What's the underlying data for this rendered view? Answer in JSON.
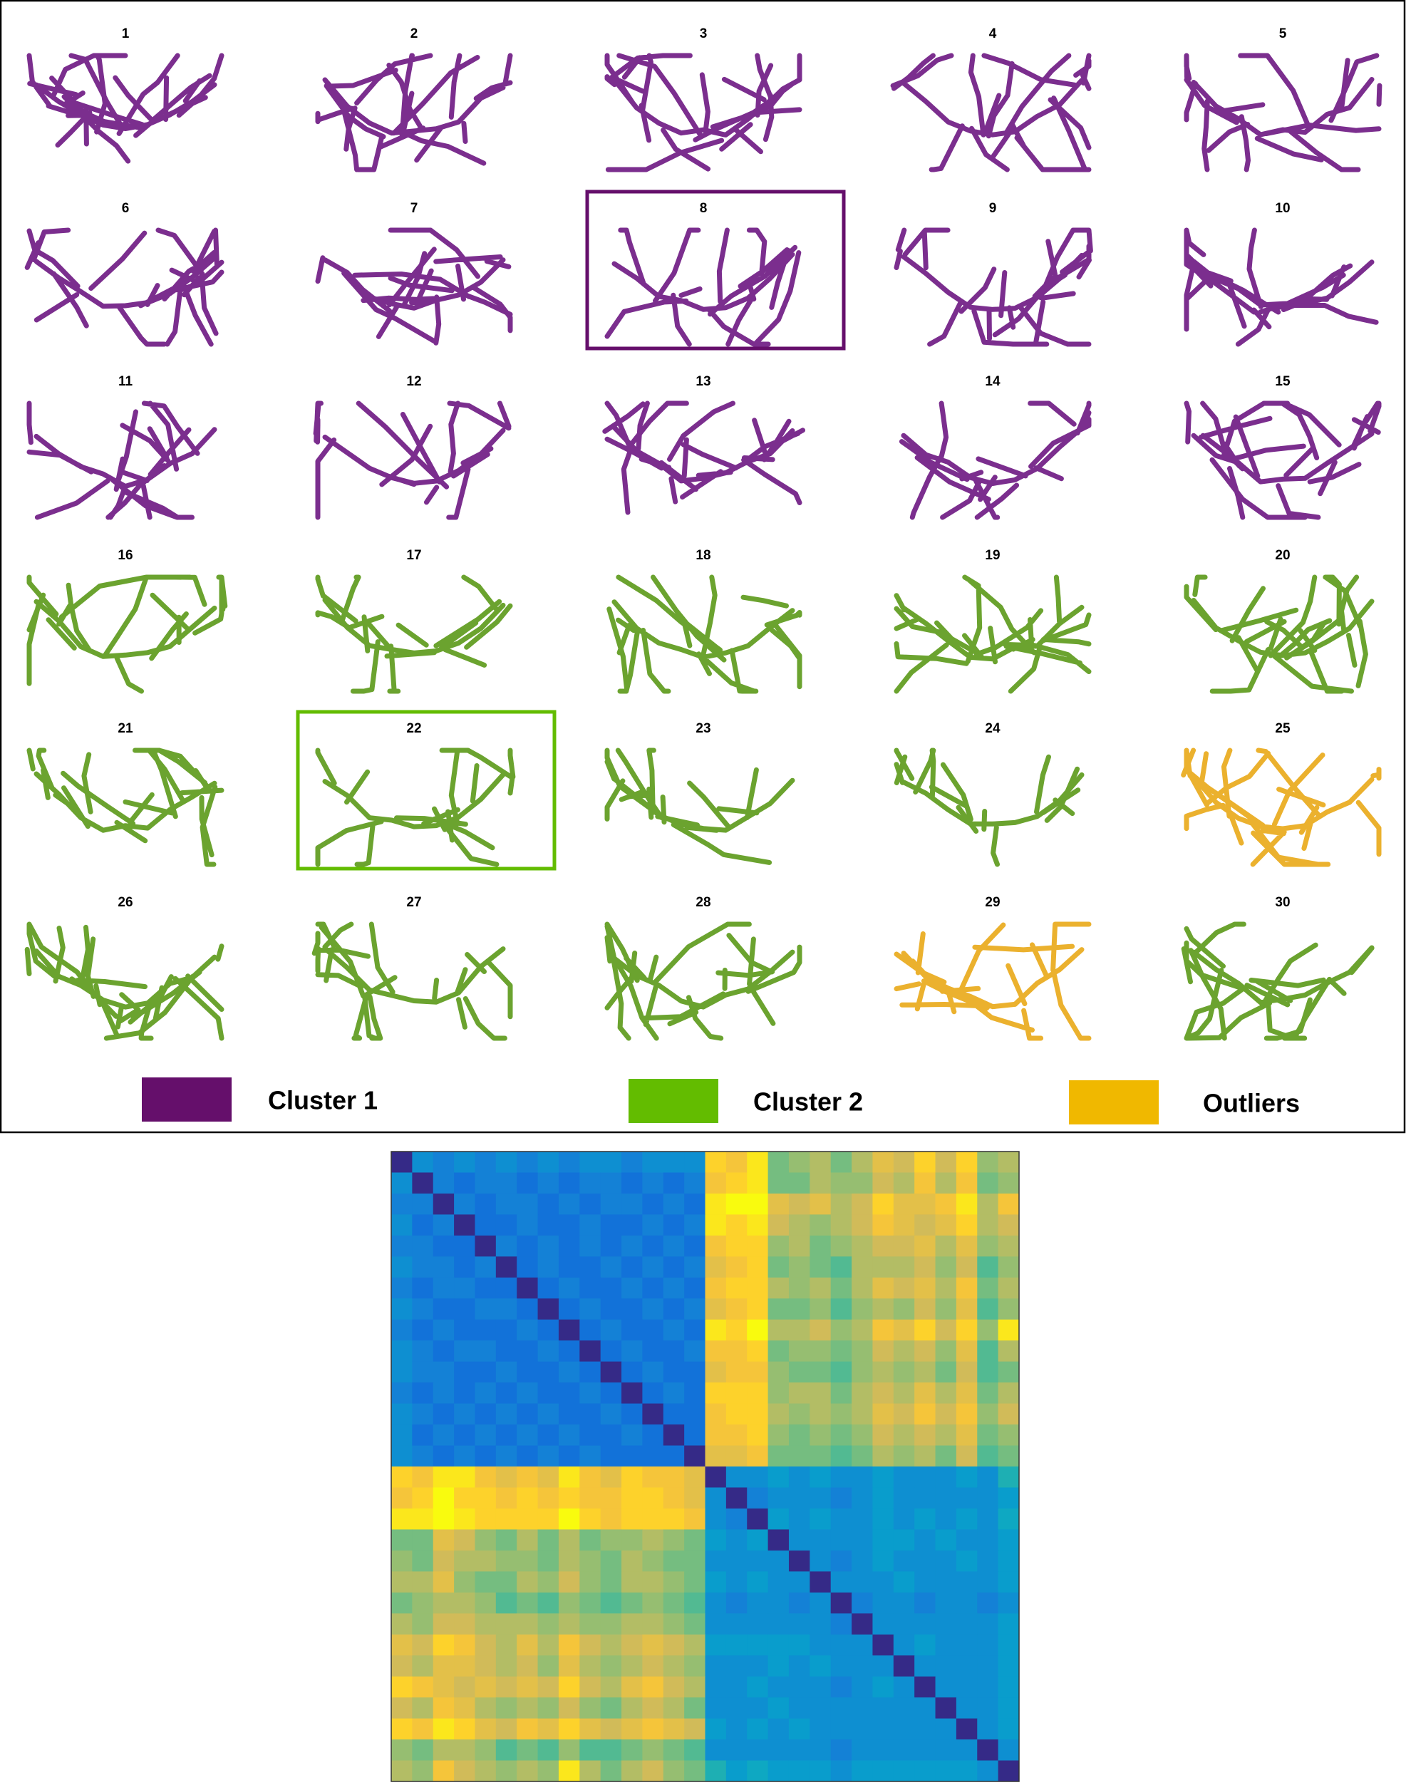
{
  "figure": {
    "panels": [
      {
        "label": "1",
        "group": 0
      },
      {
        "label": "2",
        "group": 0
      },
      {
        "label": "3",
        "group": 0
      },
      {
        "label": "4",
        "group": 0
      },
      {
        "label": "5",
        "group": 0
      },
      {
        "label": "6",
        "group": 0
      },
      {
        "label": "7",
        "group": 0
      },
      {
        "label": "8",
        "group": 0,
        "highlight": true
      },
      {
        "label": "9",
        "group": 0
      },
      {
        "label": "10",
        "group": 0
      },
      {
        "label": "11",
        "group": 0
      },
      {
        "label": "12",
        "group": 0
      },
      {
        "label": "13",
        "group": 0
      },
      {
        "label": "14",
        "group": 0
      },
      {
        "label": "15",
        "group": 0
      },
      {
        "label": "16",
        "group": 1
      },
      {
        "label": "17",
        "group": 1
      },
      {
        "label": "18",
        "group": 1
      },
      {
        "label": "19",
        "group": 1
      },
      {
        "label": "20",
        "group": 1
      },
      {
        "label": "21",
        "group": 1
      },
      {
        "label": "22",
        "group": 1,
        "highlight": true
      },
      {
        "label": "23",
        "group": 1
      },
      {
        "label": "24",
        "group": 1
      },
      {
        "label": "25",
        "group": 2
      },
      {
        "label": "26",
        "group": 1
      },
      {
        "label": "27",
        "group": 1
      },
      {
        "label": "28",
        "group": 1
      },
      {
        "label": "29",
        "group": 2
      },
      {
        "label": "30",
        "group": 1
      }
    ],
    "legend": [
      {
        "name": "Cluster 1",
        "color": "#650f6b",
        "stroke": "#7b2e8e"
      },
      {
        "name": "Cluster 2",
        "color": "#63bc00",
        "stroke": "#6ba32f"
      },
      {
        "name": "Outliers",
        "color": "#f0b800",
        "stroke": "#ebb12e"
      }
    ]
  },
  "chart_data": {
    "type": "heatmap",
    "colormap": "parula",
    "clim": [
      0,
      1
    ],
    "values": [
      [
        0,
        0.3,
        0.25,
        0.3,
        0.25,
        0.3,
        0.25,
        0.3,
        0.25,
        0.3,
        0.3,
        0.25,
        0.3,
        0.3,
        0.3,
        0.9,
        0.85,
        0.95,
        0.6,
        0.65,
        0.7,
        0.6,
        0.7,
        0.8,
        0.75,
        0.9,
        0.75,
        0.9,
        0.65,
        0.7
      ],
      [
        0.3,
        0,
        0.25,
        0.2,
        0.25,
        0.25,
        0.2,
        0.25,
        0.2,
        0.25,
        0.25,
        0.2,
        0.25,
        0.2,
        0.25,
        0.85,
        0.9,
        0.95,
        0.6,
        0.6,
        0.7,
        0.65,
        0.65,
        0.75,
        0.7,
        0.85,
        0.7,
        0.85,
        0.6,
        0.65
      ],
      [
        0.25,
        0.25,
        0,
        0.25,
        0.2,
        0.25,
        0.25,
        0.2,
        0.25,
        0.2,
        0.25,
        0.25,
        0.2,
        0.25,
        0.2,
        0.95,
        1,
        1,
        0.8,
        0.75,
        0.8,
        0.7,
        0.75,
        0.9,
        0.8,
        0.8,
        0.85,
        0.95,
        0.7,
        0.85
      ],
      [
        0.3,
        0.2,
        0.25,
        0,
        0.2,
        0.2,
        0.25,
        0.2,
        0.2,
        0.25,
        0.2,
        0.2,
        0.25,
        0.2,
        0.25,
        0.95,
        0.9,
        0.95,
        0.75,
        0.7,
        0.65,
        0.7,
        0.75,
        0.85,
        0.8,
        0.75,
        0.8,
        0.9,
        0.7,
        0.75
      ],
      [
        0.25,
        0.25,
        0.2,
        0.2,
        0,
        0.25,
        0.2,
        0.25,
        0.2,
        0.25,
        0.2,
        0.25,
        0.2,
        0.25,
        0.2,
        0.85,
        0.9,
        0.9,
        0.65,
        0.7,
        0.6,
        0.65,
        0.7,
        0.75,
        0.75,
        0.8,
        0.7,
        0.8,
        0.65,
        0.7
      ],
      [
        0.3,
        0.25,
        0.25,
        0.2,
        0.25,
        0,
        0.2,
        0.25,
        0.2,
        0.2,
        0.25,
        0.2,
        0.25,
        0.2,
        0.25,
        0.8,
        0.85,
        0.9,
        0.6,
        0.65,
        0.6,
        0.55,
        0.7,
        0.7,
        0.7,
        0.75,
        0.65,
        0.75,
        0.55,
        0.65
      ],
      [
        0.25,
        0.2,
        0.25,
        0.25,
        0.2,
        0.2,
        0,
        0.2,
        0.25,
        0.2,
        0.2,
        0.25,
        0.2,
        0.25,
        0.2,
        0.85,
        0.9,
        0.9,
        0.7,
        0.65,
        0.7,
        0.6,
        0.7,
        0.8,
        0.75,
        0.8,
        0.7,
        0.85,
        0.6,
        0.7
      ],
      [
        0.3,
        0.25,
        0.2,
        0.2,
        0.25,
        0.25,
        0.2,
        0,
        0.2,
        0.25,
        0.2,
        0.2,
        0.25,
        0.2,
        0.25,
        0.8,
        0.85,
        0.9,
        0.6,
        0.6,
        0.65,
        0.55,
        0.65,
        0.7,
        0.65,
        0.75,
        0.65,
        0.8,
        0.55,
        0.65
      ],
      [
        0.25,
        0.2,
        0.25,
        0.2,
        0.2,
        0.2,
        0.25,
        0.2,
        0,
        0.2,
        0.25,
        0.2,
        0.2,
        0.25,
        0.2,
        0.95,
        0.9,
        1,
        0.7,
        0.7,
        0.75,
        0.65,
        0.7,
        0.85,
        0.8,
        0.9,
        0.75,
        0.9,
        0.65,
        0.95
      ],
      [
        0.3,
        0.25,
        0.2,
        0.25,
        0.25,
        0.2,
        0.2,
        0.25,
        0.2,
        0,
        0.2,
        0.25,
        0.2,
        0.2,
        0.25,
        0.85,
        0.85,
        0.9,
        0.6,
        0.65,
        0.65,
        0.6,
        0.65,
        0.75,
        0.7,
        0.75,
        0.65,
        0.8,
        0.55,
        0.7
      ],
      [
        0.3,
        0.25,
        0.25,
        0.2,
        0.2,
        0.25,
        0.2,
        0.2,
        0.25,
        0.2,
        0,
        0.2,
        0.25,
        0.2,
        0.2,
        0.8,
        0.85,
        0.85,
        0.65,
        0.6,
        0.6,
        0.55,
        0.65,
        0.7,
        0.65,
        0.7,
        0.6,
        0.75,
        0.55,
        0.6
      ],
      [
        0.25,
        0.2,
        0.25,
        0.2,
        0.25,
        0.2,
        0.25,
        0.2,
        0.2,
        0.25,
        0.2,
        0,
        0.2,
        0.25,
        0.2,
        0.9,
        0.9,
        0.9,
        0.65,
        0.7,
        0.7,
        0.6,
        0.7,
        0.75,
        0.7,
        0.8,
        0.7,
        0.8,
        0.6,
        0.7
      ],
      [
        0.3,
        0.25,
        0.2,
        0.25,
        0.2,
        0.25,
        0.2,
        0.25,
        0.2,
        0.2,
        0.25,
        0.2,
        0,
        0.2,
        0.2,
        0.85,
        0.9,
        0.9,
        0.7,
        0.65,
        0.7,
        0.65,
        0.7,
        0.8,
        0.75,
        0.85,
        0.75,
        0.85,
        0.65,
        0.75
      ],
      [
        0.3,
        0.2,
        0.25,
        0.2,
        0.25,
        0.2,
        0.25,
        0.2,
        0.25,
        0.2,
        0.2,
        0.25,
        0.2,
        0,
        0.2,
        0.85,
        0.85,
        0.9,
        0.65,
        0.6,
        0.65,
        0.6,
        0.65,
        0.75,
        0.7,
        0.75,
        0.7,
        0.8,
        0.6,
        0.65
      ],
      [
        0.3,
        0.25,
        0.2,
        0.25,
        0.2,
        0.25,
        0.2,
        0.25,
        0.2,
        0.25,
        0.2,
        0.2,
        0.2,
        0.2,
        0,
        0.8,
        0.8,
        0.85,
        0.6,
        0.6,
        0.6,
        0.55,
        0.6,
        0.7,
        0.65,
        0.7,
        0.6,
        0.75,
        0.55,
        0.6
      ],
      [
        0.9,
        0.85,
        0.95,
        0.95,
        0.85,
        0.8,
        0.85,
        0.8,
        0.95,
        0.85,
        0.8,
        0.9,
        0.85,
        0.85,
        0.8,
        0,
        0.3,
        0.3,
        0.35,
        0.3,
        0.35,
        0.3,
        0.3,
        0.35,
        0.3,
        0.3,
        0.3,
        0.35,
        0.3,
        0.45
      ],
      [
        0.85,
        0.9,
        1,
        0.9,
        0.9,
        0.85,
        0.9,
        0.85,
        0.9,
        0.85,
        0.85,
        0.9,
        0.9,
        0.85,
        0.8,
        0.3,
        0,
        0.25,
        0.3,
        0.3,
        0.3,
        0.25,
        0.3,
        0.35,
        0.3,
        0.3,
        0.3,
        0.3,
        0.3,
        0.35
      ],
      [
        0.95,
        0.95,
        1,
        0.95,
        0.9,
        0.9,
        0.9,
        0.9,
        1,
        0.9,
        0.85,
        0.9,
        0.9,
        0.9,
        0.85,
        0.3,
        0.25,
        0,
        0.35,
        0.3,
        0.35,
        0.3,
        0.3,
        0.35,
        0.3,
        0.35,
        0.3,
        0.35,
        0.3,
        0.4
      ],
      [
        0.6,
        0.6,
        0.8,
        0.75,
        0.65,
        0.6,
        0.7,
        0.6,
        0.7,
        0.6,
        0.65,
        0.65,
        0.7,
        0.65,
        0.6,
        0.35,
        0.3,
        0.35,
        0,
        0.3,
        0.3,
        0.3,
        0.3,
        0.35,
        0.35,
        0.3,
        0.35,
        0.3,
        0.3,
        0.35
      ],
      [
        0.65,
        0.6,
        0.75,
        0.7,
        0.7,
        0.65,
        0.65,
        0.6,
        0.7,
        0.65,
        0.6,
        0.7,
        0.65,
        0.6,
        0.6,
        0.3,
        0.3,
        0.3,
        0.3,
        0,
        0.3,
        0.25,
        0.3,
        0.35,
        0.3,
        0.3,
        0.3,
        0.35,
        0.3,
        0.35
      ],
      [
        0.7,
        0.7,
        0.8,
        0.65,
        0.6,
        0.6,
        0.7,
        0.65,
        0.75,
        0.65,
        0.6,
        0.7,
        0.7,
        0.65,
        0.6,
        0.35,
        0.3,
        0.35,
        0.3,
        0.3,
        0,
        0.3,
        0.3,
        0.3,
        0.35,
        0.3,
        0.3,
        0.3,
        0.3,
        0.35
      ],
      [
        0.6,
        0.65,
        0.7,
        0.7,
        0.65,
        0.55,
        0.6,
        0.55,
        0.65,
        0.6,
        0.55,
        0.6,
        0.65,
        0.6,
        0.55,
        0.3,
        0.25,
        0.3,
        0.3,
        0.25,
        0.3,
        0,
        0.25,
        0.3,
        0.3,
        0.25,
        0.3,
        0.3,
        0.25,
        0.3
      ],
      [
        0.7,
        0.65,
        0.75,
        0.75,
        0.7,
        0.7,
        0.7,
        0.65,
        0.7,
        0.65,
        0.65,
        0.7,
        0.7,
        0.65,
        0.6,
        0.3,
        0.3,
        0.3,
        0.3,
        0.3,
        0.3,
        0.25,
        0,
        0.3,
        0.3,
        0.3,
        0.3,
        0.3,
        0.3,
        0.35
      ],
      [
        0.8,
        0.75,
        0.9,
        0.85,
        0.75,
        0.7,
        0.8,
        0.7,
        0.85,
        0.75,
        0.7,
        0.75,
        0.8,
        0.75,
        0.7,
        0.35,
        0.35,
        0.35,
        0.35,
        0.35,
        0.3,
        0.3,
        0.3,
        0,
        0.3,
        0.35,
        0.3,
        0.3,
        0.3,
        0.35
      ],
      [
        0.75,
        0.7,
        0.8,
        0.8,
        0.75,
        0.7,
        0.75,
        0.65,
        0.8,
        0.7,
        0.65,
        0.7,
        0.75,
        0.7,
        0.65,
        0.3,
        0.3,
        0.3,
        0.35,
        0.3,
        0.35,
        0.3,
        0.3,
        0.3,
        0,
        0.3,
        0.3,
        0.3,
        0.3,
        0.35
      ],
      [
        0.9,
        0.85,
        0.8,
        0.75,
        0.8,
        0.75,
        0.8,
        0.75,
        0.9,
        0.75,
        0.7,
        0.8,
        0.85,
        0.75,
        0.7,
        0.3,
        0.3,
        0.35,
        0.3,
        0.3,
        0.3,
        0.25,
        0.3,
        0.35,
        0.3,
        0,
        0.3,
        0.3,
        0.3,
        0.35
      ],
      [
        0.75,
        0.7,
        0.85,
        0.8,
        0.7,
        0.65,
        0.7,
        0.65,
        0.75,
        0.65,
        0.6,
        0.7,
        0.75,
        0.7,
        0.6,
        0.3,
        0.3,
        0.3,
        0.35,
        0.3,
        0.3,
        0.3,
        0.3,
        0.3,
        0.3,
        0.3,
        0,
        0.3,
        0.3,
        0.35
      ],
      [
        0.9,
        0.85,
        0.95,
        0.9,
        0.8,
        0.75,
        0.85,
        0.8,
        0.9,
        0.8,
        0.75,
        0.8,
        0.85,
        0.8,
        0.75,
        0.35,
        0.3,
        0.35,
        0.3,
        0.35,
        0.3,
        0.3,
        0.3,
        0.3,
        0.3,
        0.3,
        0.3,
        0,
        0.3,
        0.35
      ],
      [
        0.65,
        0.6,
        0.7,
        0.7,
        0.65,
        0.55,
        0.6,
        0.55,
        0.65,
        0.55,
        0.55,
        0.6,
        0.65,
        0.6,
        0.55,
        0.3,
        0.3,
        0.3,
        0.3,
        0.3,
        0.3,
        0.25,
        0.3,
        0.3,
        0.3,
        0.3,
        0.3,
        0.3,
        0,
        0.3
      ],
      [
        0.7,
        0.65,
        0.85,
        0.75,
        0.7,
        0.65,
        0.7,
        0.65,
        0.95,
        0.7,
        0.6,
        0.7,
        0.75,
        0.65,
        0.6,
        0.45,
        0.35,
        0.4,
        0.35,
        0.35,
        0.35,
        0.3,
        0.35,
        0.35,
        0.35,
        0.35,
        0.35,
        0.35,
        0.3,
        0
      ]
    ]
  }
}
